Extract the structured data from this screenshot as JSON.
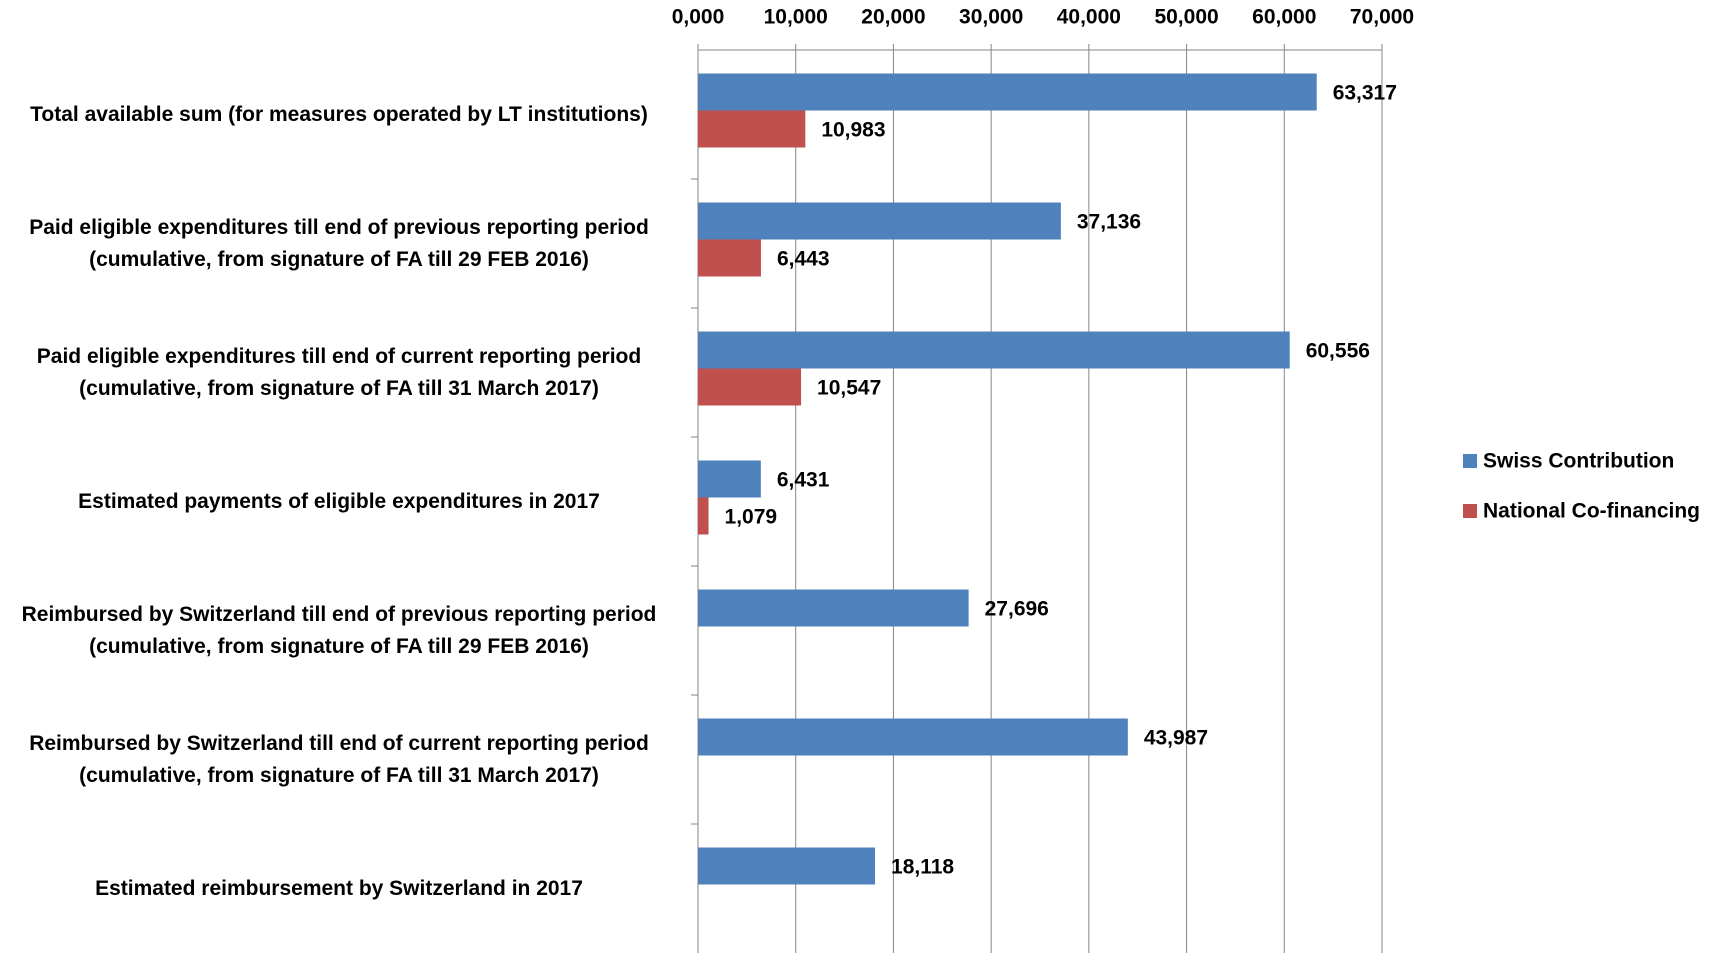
{
  "chart_data": {
    "type": "bar",
    "orientation": "horizontal",
    "categories": [
      "Total available sum (for measures operated by LT institutions)",
      "Paid eligible expenditures till end of previous reporting period (cumulative, from signature of FA till 29 FEB 2016)",
      "Paid eligible expenditures till end of current reporting period (cumulative, from signature of FA till 31 March 2017)",
      "Estimated payments of eligible expenditures in 2017",
      "Reimbursed by Switzerland till end of previous reporting period (cumulative, from signature of FA till 29 FEB 2016)",
      "Reimbursed by Switzerland till end of current reporting period (cumulative, from signature of FA till 31 March 2017)",
      "Estimated reimbursement by Switzerland in 2017"
    ],
    "series": [
      {
        "name": "Swiss Contribution",
        "color": "#4f81bd",
        "values": [
          63317,
          37136,
          60556,
          6431,
          27696,
          43987,
          18118
        ],
        "value_labels": [
          "63,317",
          "37,136",
          "60,556",
          "6,431",
          "27,696",
          "43,987",
          "18,118"
        ]
      },
      {
        "name": "National Co-financing",
        "color": "#c0504d",
        "values": [
          10983,
          6443,
          10547,
          1079,
          null,
          null,
          null
        ],
        "value_labels": [
          "10,983",
          "6,443",
          "10,547",
          "1,079",
          null,
          null,
          null
        ]
      }
    ],
    "xlim": [
      0,
      70000
    ],
    "xticks": [
      {
        "value": 0,
        "label": "0,000"
      },
      {
        "value": 10000,
        "label": "10,000"
      },
      {
        "value": 20000,
        "label": "20,000"
      },
      {
        "value": 30000,
        "label": "30,000"
      },
      {
        "value": 40000,
        "label": "40,000"
      },
      {
        "value": 50000,
        "label": "50,000"
      },
      {
        "value": 60000,
        "label": "60,000"
      },
      {
        "value": 70000,
        "label": "70,000"
      }
    ],
    "grid": true,
    "legend": "right"
  }
}
